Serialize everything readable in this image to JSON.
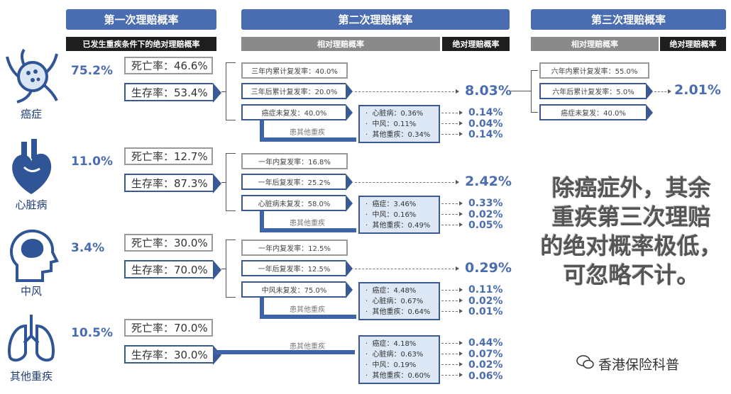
{
  "headers": {
    "first": "第一次理赔概率",
    "second": "第二次理赔概率",
    "third": "第三次理赔概率",
    "first_sub": "已发生重疾条件下的绝对理赔概率",
    "relative": "相对理赔概率",
    "absolute": "绝对理赔概率"
  },
  "other_label": "患其他重疾",
  "rows": [
    {
      "name": "癌症",
      "icon": "cancer-cell-icon",
      "pct": "75.2%",
      "death": "死亡率：46.6%",
      "survival": "生存率：53.4%",
      "boxes": [
        "三年内累计复发率：40.0%",
        "三年后累计复发率：20.0%",
        "癌症未复发：40.0%"
      ],
      "big": "8.03%",
      "items": [
        "心脏病：0.36%",
        "中风：0.11%",
        "其他重疾：0.34%"
      ],
      "smalls": [
        "0.14%",
        "0.04%",
        "0.14%"
      ]
    },
    {
      "name": "心脏病",
      "icon": "heart-icon",
      "pct": "11.0%",
      "death": "死亡率：12.7%",
      "survival": "生存率：87.3%",
      "boxes": [
        "一年内复发率：16.8%",
        "一年后复发率：25.2%",
        "心脏病未复发：58.0%"
      ],
      "big": "2.42%",
      "items": [
        "癌症：3.46%",
        "中风：0.16%",
        "其他重疾：0.49%"
      ],
      "smalls": [
        "0.33%",
        "0.02%",
        "0.05%"
      ]
    },
    {
      "name": "中风",
      "icon": "brain-icon",
      "pct": "3.4%",
      "death": "死亡率：30.0%",
      "survival": "生存率：70.0%",
      "boxes": [
        "一年内复发率：12.5%",
        "一年后复发率：12.5%",
        "中风未复发：75.0%"
      ],
      "big": "0.29%",
      "items": [
        "癌症：4.48%",
        "心脏病：0.67%",
        "其他重疾：0.64%"
      ],
      "smalls": [
        "0.11%",
        "0.02%",
        "0.01%"
      ]
    },
    {
      "name": "其他重疾",
      "icon": "lungs-icon",
      "pct": "10.5%",
      "death": "死亡率：70.0%",
      "survival": "生存率：30.0%",
      "boxes": [],
      "big": "",
      "items": [
        "癌症：4.18%",
        "心脏病：0.63%",
        "中风：0.19%",
        "其他重疾：0.60%"
      ],
      "smalls": [
        "0.44%",
        "0.07%",
        "0.02%",
        "0.06%"
      ]
    }
  ],
  "third": {
    "boxes": [
      "六年内累计复发率：55.0%",
      "六年后累计复发率：5.0%",
      "癌症未复发：40.0%"
    ],
    "big": "2.01%"
  },
  "note": [
    "除癌症外，其余",
    "重疾第三次理赔",
    "的绝对概率极低，",
    "可忽略不计。"
  ],
  "logo": "香港保险科普",
  "colors": {
    "accent": "#4a6cb0",
    "border": "#3b5a94",
    "fill": "#dde8f6"
  }
}
